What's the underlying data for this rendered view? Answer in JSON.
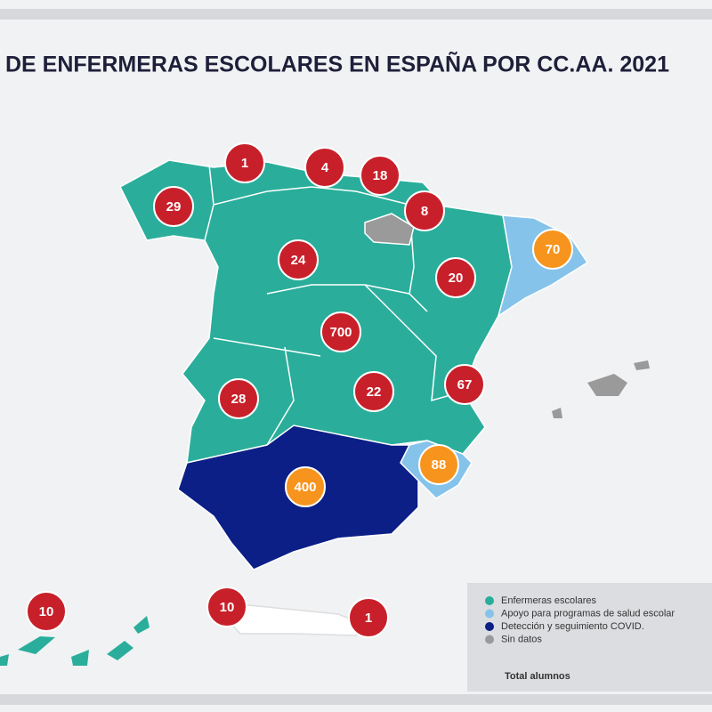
{
  "title": "DE ENFERMERAS ESCOLARES EN ESPAÑA POR CC.AA. 2021",
  "badges": [
    {
      "value": 1,
      "color": "#c8202a"
    },
    {
      "value": 4,
      "color": "#c8202a"
    },
    {
      "value": 18,
      "color": "#c8202a"
    },
    {
      "value": 29,
      "color": "#c8202a"
    },
    {
      "value": 8,
      "color": "#c8202a"
    },
    {
      "value": 24,
      "color": "#c8202a"
    },
    {
      "value": 70,
      "color": "#f7941d"
    },
    {
      "value": 20,
      "color": "#c8202a"
    },
    {
      "value": 700,
      "color": "#c8202a"
    },
    {
      "value": 67,
      "color": "#c8202a"
    },
    {
      "value": 28,
      "color": "#c8202a"
    },
    {
      "value": 22,
      "color": "#c8202a"
    },
    {
      "value": 88,
      "color": "#f7941d"
    },
    {
      "value": 400,
      "color": "#f7941d"
    },
    {
      "value": 10,
      "color": "#c8202a"
    },
    {
      "value": 10,
      "color": "#c8202a"
    },
    {
      "value": 1,
      "color": "#c8202a"
    }
  ],
  "legend": {
    "items": [
      {
        "label": "Enfermeras escolares",
        "color": "#2aae9b"
      },
      {
        "label": "Apoyo para programas de salud escolar",
        "color": "#86c3ea"
      },
      {
        "label": "Detección y seguimiento COVID.",
        "color": "#0b1f86"
      },
      {
        "label": "Sin datos",
        "color": "#9a9a9a"
      }
    ],
    "note": "Total alumnos"
  }
}
